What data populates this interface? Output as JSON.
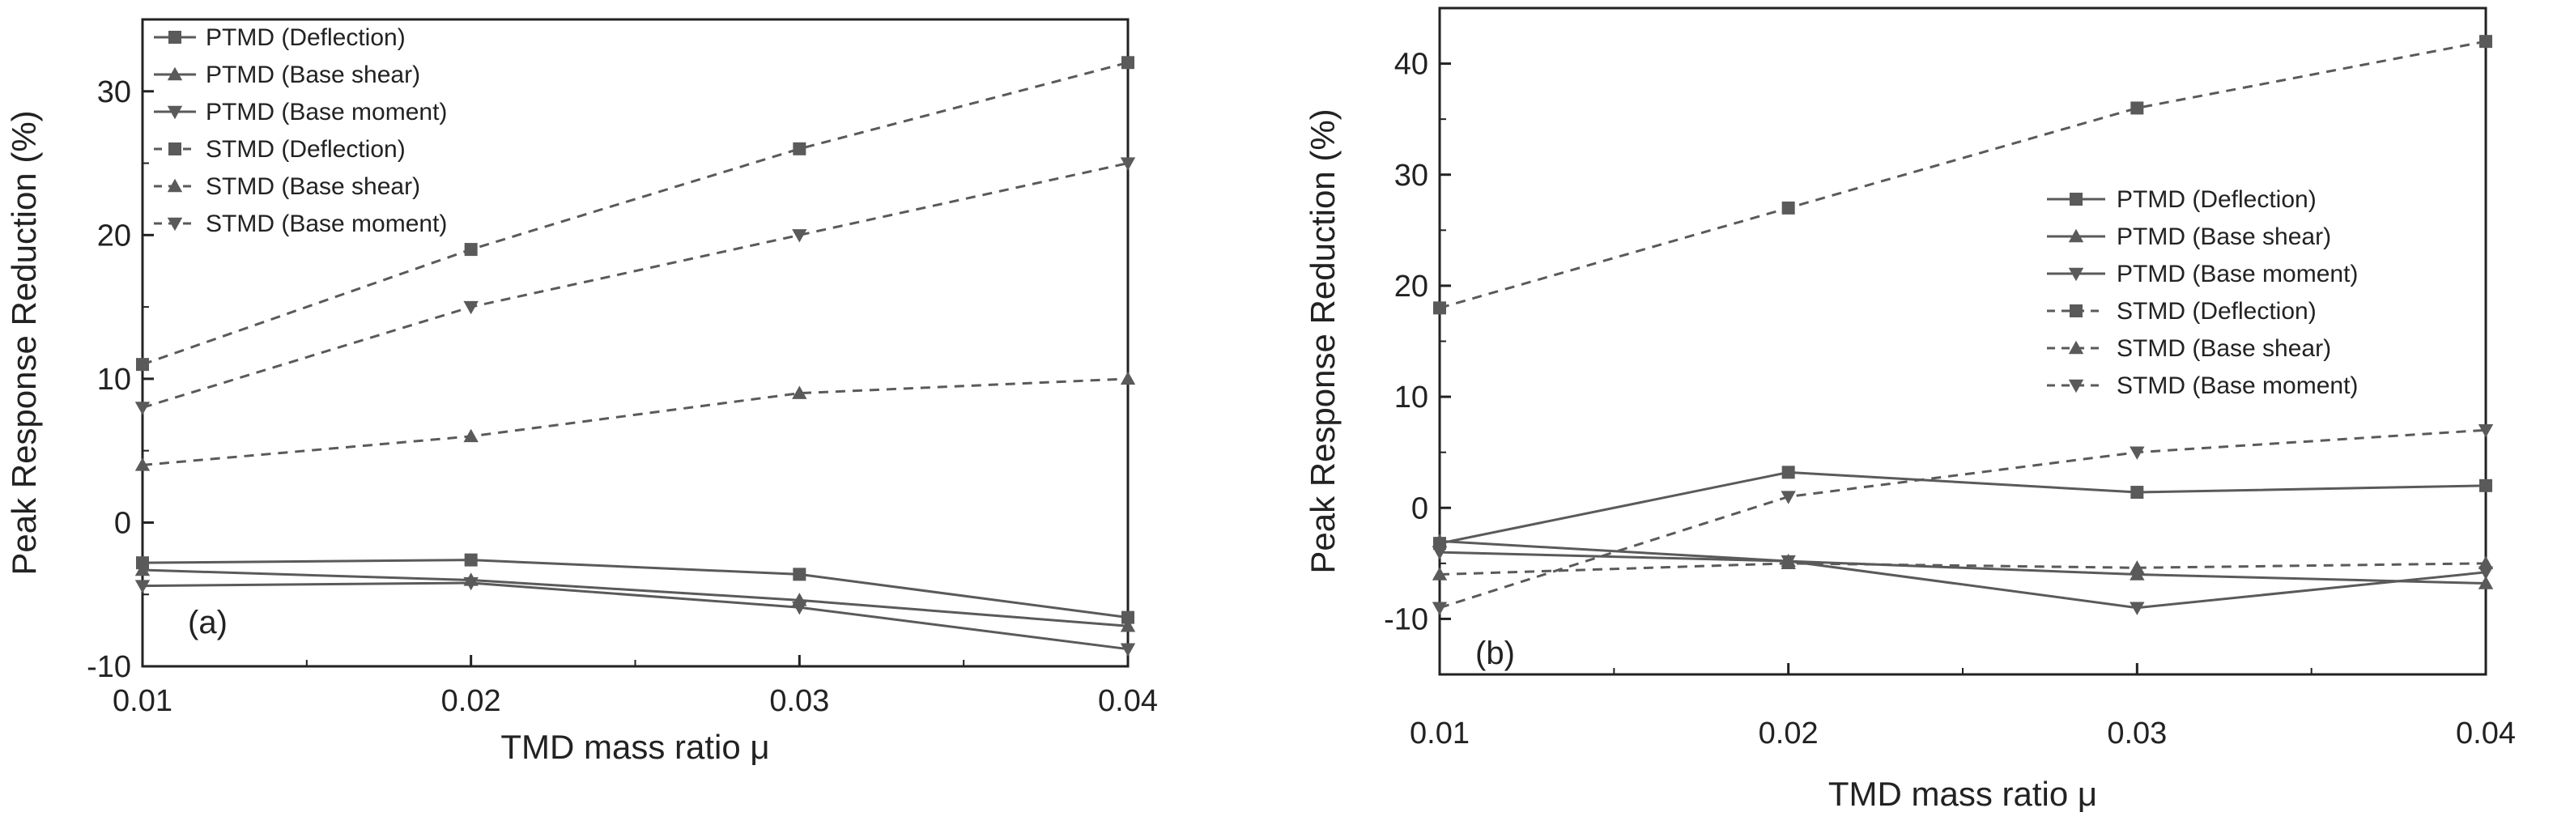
{
  "chart_data": [
    {
      "type": "line",
      "panel_label": "(a)",
      "xlabel": "TMD mass ratio  μ",
      "ylabel": "Peak Response Reduction (%)",
      "xlim": [
        0.01,
        0.04
      ],
      "ylim": [
        -10,
        35
      ],
      "xticks": [
        "0.01",
        "0.02",
        "0.03",
        "0.04"
      ],
      "yticks": [
        "-10",
        "0",
        "10",
        "20",
        "30"
      ],
      "x": [
        0.01,
        0.02,
        0.03,
        0.04
      ],
      "legend_position": "top-left",
      "series": [
        {
          "name": "PTMD (Deflection)",
          "marker": "square",
          "dash": false,
          "values": [
            -2.8,
            -2.6,
            -3.6,
            -6.6
          ]
        },
        {
          "name": "PTMD (Base shear)",
          "marker": "triangle-up",
          "dash": false,
          "values": [
            -3.3,
            -4.0,
            -5.4,
            -7.2
          ]
        },
        {
          "name": "PTMD (Base moment)",
          "marker": "triangle-down",
          "dash": false,
          "values": [
            -4.4,
            -4.2,
            -5.9,
            -8.8
          ]
        },
        {
          "name": "STMD (Deflection)",
          "marker": "square",
          "dash": true,
          "values": [
            11,
            19,
            26,
            32
          ]
        },
        {
          "name": "STMD (Base shear)",
          "marker": "triangle-up",
          "dash": true,
          "values": [
            4,
            6,
            9,
            10
          ]
        },
        {
          "name": "STMD (Base moment)",
          "marker": "triangle-down",
          "dash": true,
          "values": [
            8,
            15,
            20,
            25
          ]
        }
      ]
    },
    {
      "type": "line",
      "panel_label": "(b)",
      "xlabel": "TMD mass ratio  μ",
      "ylabel": "Peak Response Reduction (%)",
      "xlim": [
        0.01,
        0.04
      ],
      "ylim": [
        -15,
        45
      ],
      "xticks": [
        "0.01",
        "0.02",
        "0.03",
        "0.04"
      ],
      "yticks": [
        "-10",
        "0",
        "10",
        "20",
        "30",
        "40"
      ],
      "x": [
        0.01,
        0.02,
        0.03,
        0.04
      ],
      "legend_position": "center-right",
      "series": [
        {
          "name": "PTMD (Deflection)",
          "marker": "square",
          "dash": false,
          "values": [
            -3.2,
            3.2,
            1.4,
            2.0
          ]
        },
        {
          "name": "PTMD (Base shear)",
          "marker": "triangle-up",
          "dash": false,
          "values": [
            -3.0,
            -4.8,
            -6.0,
            -6.8
          ]
        },
        {
          "name": "PTMD (Base moment)",
          "marker": "triangle-down",
          "dash": false,
          "values": [
            -4.0,
            -4.8,
            -9.0,
            -5.8
          ]
        },
        {
          "name": "STMD (Deflection)",
          "marker": "square",
          "dash": true,
          "values": [
            18,
            27,
            36,
            42
          ]
        },
        {
          "name": "STMD (Base shear)",
          "marker": "triangle-up",
          "dash": true,
          "values": [
            -6.0,
            -5.0,
            -5.4,
            -5.0
          ]
        },
        {
          "name": "STMD (Base moment)",
          "marker": "triangle-down",
          "dash": true,
          "values": [
            -9.0,
            1.0,
            5.0,
            7.0
          ]
        }
      ]
    }
  ],
  "colors": {
    "line": "#5a5a5a",
    "axis": "#222222"
  }
}
